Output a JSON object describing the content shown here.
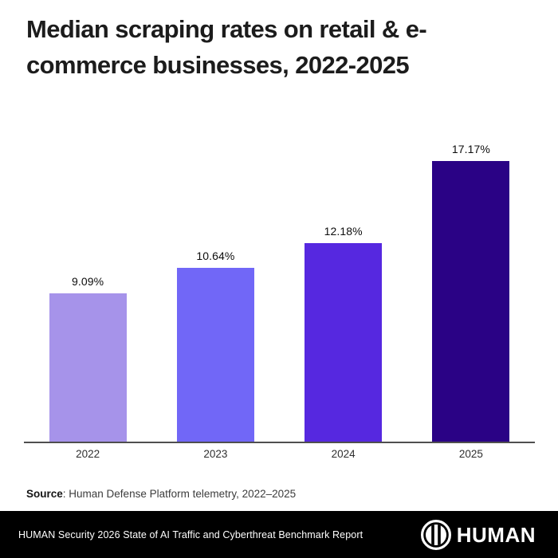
{
  "title": {
    "line1": "Median scraping rates on retail & e-",
    "line2": "commerce businesses, 2022-2025",
    "full": "Median scraping rates on retail & e-commerce businesses, 2022-2025"
  },
  "chart_data": {
    "type": "bar",
    "title": "Median scraping rates on retail & e-commerce businesses, 2022-2025",
    "categories": [
      "2022",
      "2023",
      "2024",
      "2025"
    ],
    "values": [
      9.09,
      10.64,
      12.18,
      17.17
    ],
    "data_labels": [
      "9.09%",
      "10.64%",
      "12.18%",
      "17.17%"
    ],
    "bar_colors": [
      "#a693ea",
      "#7167f7",
      "#5628e0",
      "#2a0285"
    ],
    "xlabel": "",
    "ylabel": "",
    "ylim": [
      0,
      18.8
    ],
    "grid": false,
    "legend": "none",
    "axis_line_color": "#4f4f4f",
    "value_label_color": "#0d0d0d",
    "tick_label_color": "#2f2f2f"
  },
  "source": {
    "label": "Source",
    "rest": ": Human Defense Platform telemetry, 2022–2025"
  },
  "footer": {
    "text": "HUMAN Security 2026 State of AI Traffic and Cyberthreat Benchmark Report",
    "brand": "HUMAN",
    "background": "#000000",
    "text_color": "#ffffff"
  }
}
